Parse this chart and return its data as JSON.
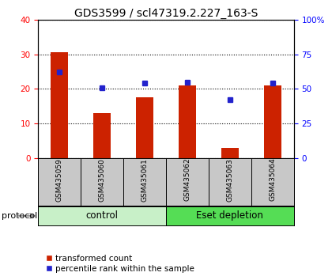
{
  "title": "GDS3599 / scl47319.2.227_163-S",
  "samples": [
    "GSM435059",
    "GSM435060",
    "GSM435061",
    "GSM435062",
    "GSM435063",
    "GSM435064"
  ],
  "red_values": [
    30.5,
    13.0,
    17.5,
    21.0,
    3.0,
    21.0
  ],
  "blue_values": [
    62,
    51,
    54,
    55,
    42,
    54
  ],
  "left_ylim": [
    0,
    40
  ],
  "right_ylim": [
    0,
    100
  ],
  "left_yticks": [
    0,
    10,
    20,
    30,
    40
  ],
  "right_yticks": [
    0,
    25,
    50,
    75,
    100
  ],
  "right_yticklabels": [
    "0",
    "25",
    "50",
    "75",
    "100%"
  ],
  "groups": [
    {
      "label": "control",
      "start": 0,
      "end": 3,
      "color": "#c8f0c8"
    },
    {
      "label": "Eset depletion",
      "start": 3,
      "end": 6,
      "color": "#55dd55"
    }
  ],
  "protocol_label": "protocol",
  "bar_color": "#cc2200",
  "dot_color": "#2222cc",
  "bar_width": 0.4,
  "legend_items": [
    {
      "color": "#cc2200",
      "label": "transformed count"
    },
    {
      "color": "#2222cc",
      "label": "percentile rank within the sample"
    }
  ],
  "grid_linestyle": ":",
  "grid_linewidth": 0.8,
  "title_fontsize": 10,
  "tick_fontsize": 7.5,
  "label_fontsize": 6.5,
  "legend_fontsize": 7.5,
  "group_fontsize": 8.5,
  "protocol_fontsize": 8
}
